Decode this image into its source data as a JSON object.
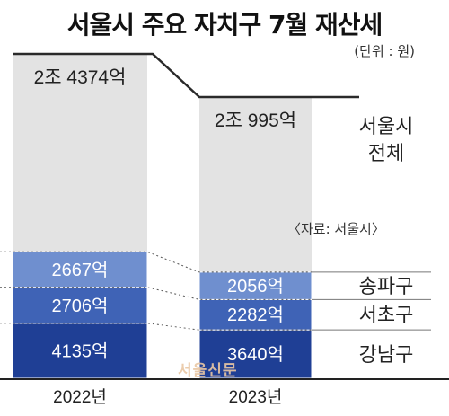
{
  "title": "서울시 주요 자치구 7월 재산세",
  "unit": "(단위 : 원)",
  "source": "〈자료: 서울시〉",
  "watermark": "서울신문",
  "colors": {
    "total": "#e3e3e3",
    "songpa": "#6f8fcf",
    "seocho": "#3f63b6",
    "gangnam": "#1f3f95"
  },
  "chart_data": {
    "type": "bar",
    "stacked": true,
    "categories": [
      "2022년",
      "2023년"
    ],
    "series": [
      {
        "name": "강남구",
        "key": "gangnam",
        "values": [
          4135,
          3640
        ],
        "labels": [
          "4135억",
          "3640억"
        ]
      },
      {
        "name": "서초구",
        "key": "seocho",
        "values": [
          2706,
          2282
        ],
        "labels": [
          "2706억",
          "2282억"
        ]
      },
      {
        "name": "송파구",
        "key": "songpa",
        "values": [
          2667,
          2056
        ],
        "labels": [
          "2667억",
          "2056억"
        ]
      },
      {
        "name": "서울시 전체",
        "key": "total",
        "values": [
          24374,
          20995
        ],
        "labels": [
          "2조 4374억",
          "2조 995억"
        ]
      }
    ]
  }
}
